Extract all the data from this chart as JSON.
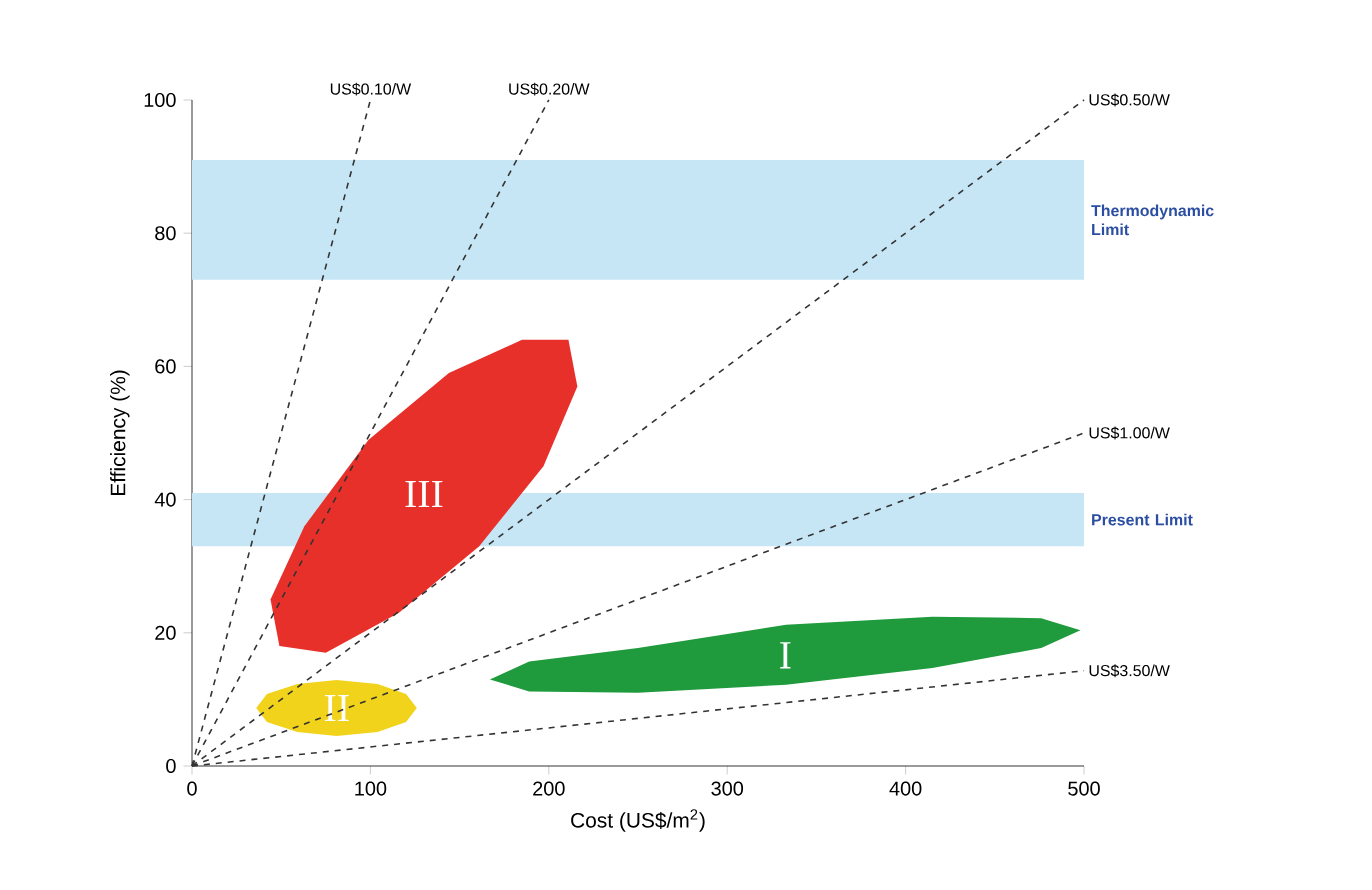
{
  "chart_data": {
    "type": "line",
    "xlabel": "Cost (US$/m$^{2}$)",
    "ylabel": "Efficiency (%)",
    "xlim": [
      0,
      500
    ],
    "ylim": [
      0,
      100
    ],
    "xticks": [
      0,
      100,
      200,
      300,
      400,
      500
    ],
    "yticks": [
      0,
      20,
      40,
      60,
      80,
      100
    ],
    "grid": false,
    "line_style": "dashed",
    "bands": [
      {
        "axis": "y",
        "from": 73,
        "to": 91,
        "label": "Thermodynamic Limit",
        "color": "#c6e6f5"
      },
      {
        "axis": "y",
        "from": 33,
        "to": 41,
        "label": "Present Limit",
        "color": "#c6e6f5"
      }
    ],
    "series": [
      {
        "type": "area",
        "name": "III",
        "color": "#e8302a",
        "x": [
          211,
          216,
          197,
          161,
          116,
          75,
          49,
          44,
          63,
          99,
          144,
          185
        ],
        "values": [
          64,
          57,
          45,
          33,
          23,
          17,
          18,
          25,
          36,
          49,
          59,
          64
        ]
      },
      {
        "type": "area",
        "name": "II",
        "color": "#f2d31b",
        "x": [
          126,
          120,
          104,
          81,
          59,
          42,
          36,
          42,
          59,
          81,
          104,
          120
        ],
        "values": [
          8.7,
          10.8,
          12.3,
          12.9,
          12.3,
          10.8,
          8.7,
          6.6,
          5.1,
          4.5,
          5.1,
          6.6
        ]
      },
      {
        "type": "area",
        "name": "I",
        "color": "#1f9a3c",
        "x": [
          498,
          476,
          415,
          333,
          250,
          189,
          167,
          189,
          250,
          333,
          415,
          476
        ],
        "values": [
          20.4,
          22.2,
          22.4,
          21.2,
          17.7,
          15.7,
          13,
          11.2,
          11,
          12.2,
          14.7,
          17.7
        ]
      },
      {
        "name": "US$0.10/W",
        "color": "#333333",
        "x": [
          0,
          100
        ],
        "values": [
          0,
          100
        ]
      },
      {
        "name": "US$0.20/W",
        "color": "#333333",
        "x": [
          0,
          200
        ],
        "values": [
          0,
          100
        ]
      },
      {
        "name": "US$0.50/W",
        "color": "#333333",
        "x": [
          0,
          500
        ],
        "values": [
          0,
          100
        ]
      },
      {
        "name": "US$1.00/W",
        "color": "#333333",
        "x": [
          0,
          500
        ],
        "values": [
          0,
          50
        ]
      },
      {
        "name": "US$3.50/W",
        "color": "#333333",
        "x": [
          0,
          500
        ],
        "values": [
          0,
          14.3
        ]
      }
    ]
  }
}
